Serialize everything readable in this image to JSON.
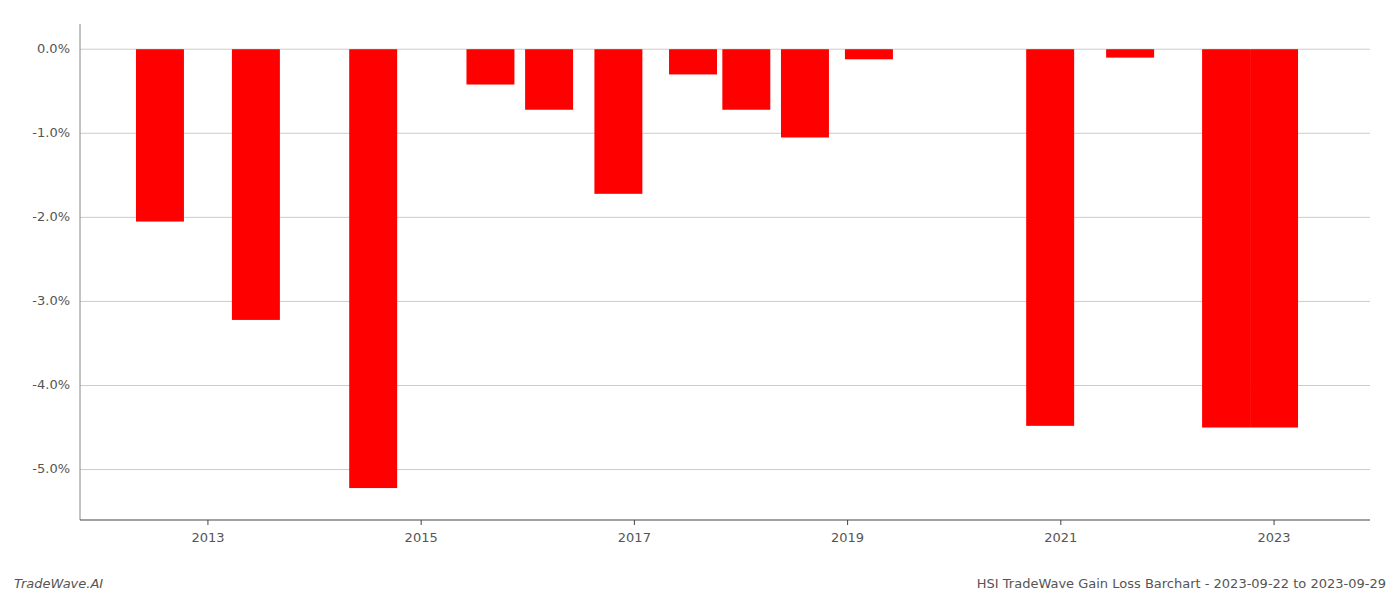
{
  "chart_data": {
    "type": "bar",
    "x": [
      2012.55,
      2013.45,
      2014.55,
      2015.65,
      2016.2,
      2016.85,
      2017.55,
      2018.05,
      2018.6,
      2019.2,
      2020.9,
      2021.65,
      2022.55,
      2023.0
    ],
    "values": [
      -2.05,
      -3.22,
      -5.22,
      -0.42,
      -0.72,
      -1.72,
      -0.3,
      -0.72,
      -1.05,
      -0.12,
      -4.48,
      -0.1,
      -4.5,
      -4.5
    ],
    "color": "#ff0000",
    "xlim": [
      2011.8,
      2023.9
    ],
    "xticks": [
      2013,
      2015,
      2017,
      2019,
      2021,
      2023
    ],
    "ylim": [
      -5.6,
      0.3
    ],
    "yticks": [
      {
        "value": 0.0,
        "label": "0.0%"
      },
      {
        "value": -1.0,
        "label": "-1.0%"
      },
      {
        "value": -2.0,
        "label": "-2.0%"
      },
      {
        "value": -3.0,
        "label": "-3.0%"
      },
      {
        "value": -4.0,
        "label": "-4.0%"
      },
      {
        "value": -5.0,
        "label": "-5.0%"
      }
    ],
    "grid": true,
    "annotations": [
      "TradeWave.AI",
      "HSI TradeWave Gain Loss Barchart - 2023-09-22 to 2023-09-29"
    ]
  }
}
